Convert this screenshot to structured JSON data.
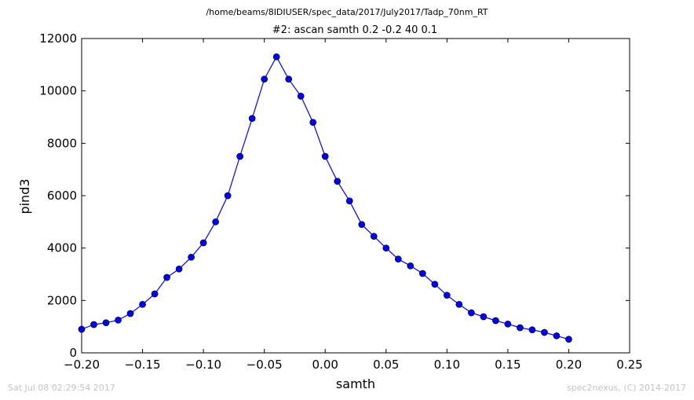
{
  "chart_data": {
    "type": "line",
    "suptitle": "/home/beams/8IDIUSER/spec_data/2017/July2017/Tadp_70nm_RT",
    "title": "#2: ascan  samth 0.2 -0.2  40 0.1",
    "xlabel": "samth",
    "ylabel": "pind3",
    "xlim": [
      -0.2,
      0.25
    ],
    "ylim": [
      0,
      12000
    ],
    "xticks": [
      -0.2,
      -0.15,
      -0.1,
      -0.05,
      0.0,
      0.05,
      0.1,
      0.15,
      0.2,
      0.25
    ],
    "xtick_labels": [
      "−0.20",
      "−0.15",
      "−0.10",
      "−0.05",
      "0.00",
      "0.05",
      "0.10",
      "0.15",
      "0.20",
      "0.25"
    ],
    "yticks": [
      0,
      2000,
      4000,
      6000,
      8000,
      10000,
      12000
    ],
    "ytick_labels": [
      "0",
      "2000",
      "4000",
      "6000",
      "8000",
      "10000",
      "12000"
    ],
    "grid": false,
    "line_color": "#0000ff",
    "series": [
      {
        "x": [
          -0.2,
          -0.19,
          -0.18,
          -0.17,
          -0.16,
          -0.15,
          -0.14,
          -0.13,
          -0.12,
          -0.11,
          -0.1,
          -0.09,
          -0.08,
          -0.07,
          -0.06,
          -0.05,
          -0.04,
          -0.03,
          -0.02,
          -0.01,
          0.0,
          0.01,
          0.02,
          0.03,
          0.04,
          0.05,
          0.06,
          0.07,
          0.08,
          0.09,
          0.1,
          0.11,
          0.12,
          0.13,
          0.14,
          0.15,
          0.16,
          0.17,
          0.18,
          0.19,
          0.2
        ],
        "y": [
          900,
          1080,
          1150,
          1250,
          1500,
          1850,
          2250,
          2880,
          3200,
          3650,
          4200,
          5000,
          6000,
          7500,
          8950,
          10450,
          11300,
          10450,
          9800,
          8800,
          7500,
          6550,
          5800,
          4900,
          4450,
          4000,
          3580,
          3320,
          3030,
          2620,
          2200,
          1850,
          1530,
          1380,
          1230,
          1100,
          960,
          880,
          780,
          650,
          520
        ]
      }
    ]
  },
  "footer": {
    "left": "Sat Jul 08 02:29:54 2017",
    "right": "spec2nexus, (C) 2014-2017"
  }
}
